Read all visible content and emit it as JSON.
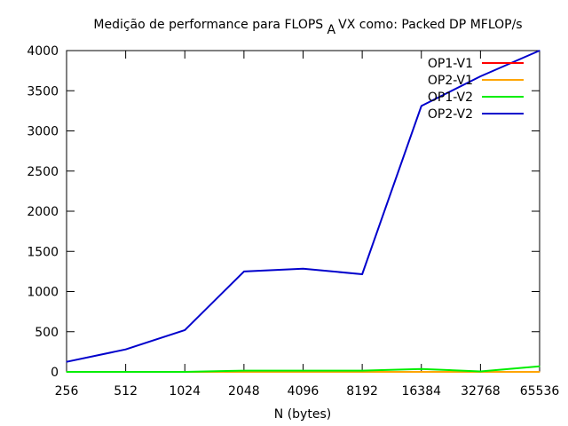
{
  "chart_data": {
    "type": "line",
    "title": "Medição de performance para FLOPS",
    "title_subscript": "A",
    "title_suffix": "VX como: Packed DP MFLOP/s",
    "xlabel": "N (bytes)",
    "ylabel": "",
    "x_scale": "log2",
    "x": [
      256,
      512,
      1024,
      2048,
      4096,
      8192,
      16384,
      32768,
      65536
    ],
    "x_ticks": [
      "256",
      "512",
      "1024",
      "2048",
      "4096",
      "8192",
      "16384",
      "32768",
      "65536"
    ],
    "y_ticks": [
      "0",
      "500",
      "1000",
      "1500",
      "2000",
      "2500",
      "3000",
      "3500",
      "4000"
    ],
    "ylim": [
      0,
      4000
    ],
    "grid": false,
    "legend_position": "top-right",
    "series": [
      {
        "name": "OP1-V1",
        "color": "#ff0000",
        "values": [
          0,
          0,
          0,
          0,
          0,
          0,
          0,
          0,
          0
        ]
      },
      {
        "name": "OP2-V1",
        "color": "#ffa500",
        "values": [
          0,
          0,
          0,
          0,
          0,
          0,
          0,
          0,
          0
        ]
      },
      {
        "name": "OP1-V2",
        "color": "#00ee00",
        "values": [
          0,
          0,
          0,
          15,
          15,
          15,
          35,
          5,
          70
        ]
      },
      {
        "name": "OP2-V2",
        "color": "#0000cc",
        "values": [
          125,
          280,
          520,
          1250,
          1285,
          1215,
          3310,
          3680,
          4000
        ]
      }
    ]
  }
}
